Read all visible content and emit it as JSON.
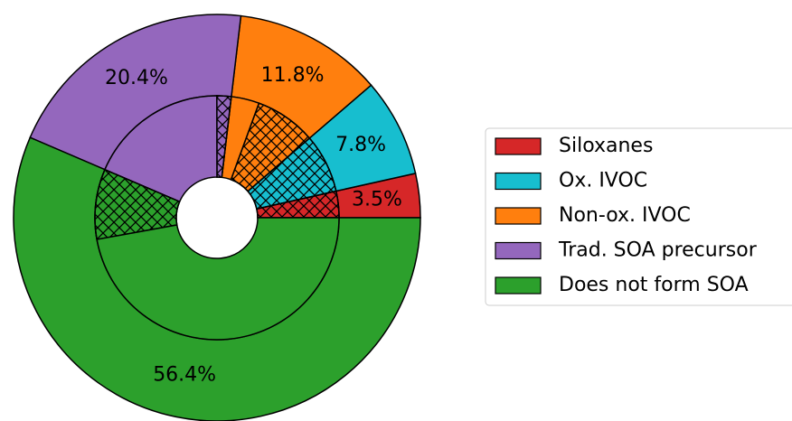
{
  "chart_data": {
    "type": "nested-donut",
    "categories": [
      "Siloxanes",
      "Ox. IVOC",
      "Non-ox. IVOC",
      "Trad. SOA precursor",
      "Does not form SOA"
    ],
    "values": [
      3.5,
      7.8,
      11.8,
      20.4,
      56.4
    ],
    "value_labels": [
      "3.5%",
      "7.8%",
      "11.8%",
      "20.4%",
      "56.4%"
    ],
    "colors": [
      "#d62728",
      "#17becf",
      "#ff7f0e",
      "#9467bd",
      "#2ca02c"
    ],
    "inner": {
      "values": [
        3.5,
        7.8,
        8.1,
        3.7,
        1.9,
        18.5,
        9.3,
        47.1
      ],
      "colors": [
        "#d62728",
        "#17becf",
        "#ff7f0e",
        "#ff7f0e",
        "#9467bd",
        "#9467bd",
        "#2ca02c",
        "#2ca02c"
      ],
      "hatch": [
        true,
        true,
        true,
        false,
        true,
        false,
        true,
        false
      ]
    },
    "start_angle": 0,
    "legend": "right"
  }
}
